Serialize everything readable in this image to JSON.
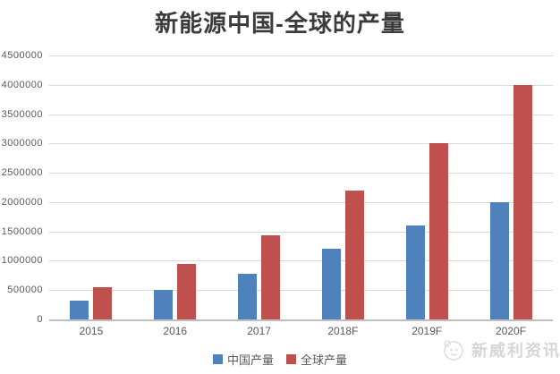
{
  "watermark": {
    "text": "新威利资讯"
  },
  "colors": {
    "china_blue": "#4F81BD",
    "global_red": "#C0504D",
    "gridline": "#D9D9D9",
    "axis_line": "#BFBFBF",
    "axis_text": "#595959",
    "title_text": "#3B3B3B",
    "watermark_text": "#D6D6D6"
  },
  "chart_data": {
    "type": "bar",
    "title": "新能源中国-全球的产量",
    "categories": [
      "2015",
      "2016",
      "2017",
      "2018F",
      "2019F",
      "2020F"
    ],
    "series": [
      {
        "name": "中国产量",
        "color": "#4F81BD",
        "values": [
          320000,
          500000,
          780000,
          1200000,
          1600000,
          2000000
        ]
      },
      {
        "name": "全球产量",
        "color": "#C0504D",
        "values": [
          550000,
          950000,
          1430000,
          2200000,
          3000000,
          4000000
        ]
      }
    ],
    "xlabel": "",
    "ylabel": "",
    "ylim": [
      0,
      4500000
    ],
    "ytick_step": 500000,
    "yticks": [
      "4500000",
      "4000000",
      "3500000",
      "3000000",
      "2500000",
      "2000000",
      "1500000",
      "1000000",
      "500000",
      "0"
    ],
    "grid": true,
    "legend_position": "bottom-center"
  }
}
